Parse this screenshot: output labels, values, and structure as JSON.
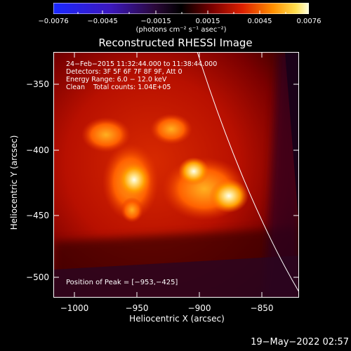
{
  "colorbar": {
    "tick_labels": [
      "−0.0076",
      "−0.0045",
      "−0.0015",
      "0.0015",
      "0.0045",
      "0.0076"
    ],
    "units": "(photons cm⁻² s⁻¹ asec⁻²)",
    "colormap": "red-temperature"
  },
  "plot": {
    "title": "Reconstructed RHESSI Image",
    "info_lines": [
      "24−Feb−2015 11:32:44.000 to 11:38:44.000",
      "Detectors: 3F 5F 6F 7F 8F 9F, Att 0",
      "Energy Range: 6.0 − 12.0 keV",
      "Clean    Total counts: 1.04E+05"
    ],
    "peak_text": "Position of Peak = [−953,−425]",
    "y_axis": {
      "title": "Heliocentric Y (arcsec)",
      "tick_labels": [
        "−350",
        "−400",
        "−450",
        "−500"
      ]
    },
    "x_axis": {
      "title": "Heliocentric X (arcsec)",
      "tick_labels": [
        "−1000",
        "−950",
        "−900",
        "−850"
      ]
    }
  },
  "timestamp": "19−May−2022 02:57"
}
